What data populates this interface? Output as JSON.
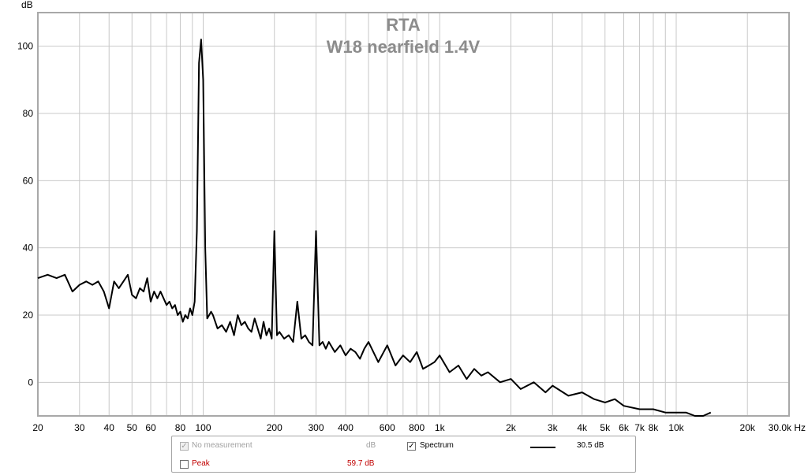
{
  "chart_data": {
    "type": "line",
    "title": "RTA",
    "subtitle": "W18 nearfield 1.4V",
    "ylabel": "dB",
    "xlabel": "Hz",
    "xscale": "log",
    "xlim": [
      20,
      30000
    ],
    "ylim": [
      -10,
      110
    ],
    "y_ticks": [
      0,
      20,
      40,
      60,
      80,
      100
    ],
    "x_ticks": [
      {
        "v": 20,
        "label": "20"
      },
      {
        "v": 30,
        "label": "30"
      },
      {
        "v": 40,
        "label": "40"
      },
      {
        "v": 50,
        "label": "50"
      },
      {
        "v": 60,
        "label": "60"
      },
      {
        "v": 80,
        "label": "80"
      },
      {
        "v": 100,
        "label": "100"
      },
      {
        "v": 200,
        "label": "200"
      },
      {
        "v": 300,
        "label": "300"
      },
      {
        "v": 400,
        "label": "400"
      },
      {
        "v": 600,
        "label": "600"
      },
      {
        "v": 800,
        "label": "800"
      },
      {
        "v": 1000,
        "label": "1k"
      },
      {
        "v": 2000,
        "label": "2k"
      },
      {
        "v": 3000,
        "label": "3k"
      },
      {
        "v": 4000,
        "label": "4k"
      },
      {
        "v": 5000,
        "label": "5k"
      },
      {
        "v": 6000,
        "label": "6k"
      },
      {
        "v": 7000,
        "label": "7k"
      },
      {
        "v": 8000,
        "label": "8k"
      },
      {
        "v": 10000,
        "label": "10k"
      },
      {
        "v": 20000,
        "label": "20k"
      },
      {
        "v": 30000,
        "label": "30.0k Hz"
      }
    ],
    "grid": true,
    "series": [
      {
        "name": "Spectrum",
        "color": "#000000",
        "x": [
          20,
          22,
          24,
          26,
          28,
          30,
          32,
          34,
          36,
          38,
          40,
          42,
          44,
          46,
          48,
          50,
          52,
          54,
          56,
          58,
          60,
          62,
          64,
          66,
          68,
          70,
          72,
          74,
          76,
          78,
          80,
          82,
          84,
          86,
          88,
          90,
          92,
          94,
          96,
          98,
          100,
          102,
          104,
          106,
          108,
          110,
          115,
          120,
          125,
          130,
          135,
          140,
          145,
          150,
          155,
          160,
          165,
          170,
          175,
          180,
          185,
          190,
          195,
          200,
          205,
          210,
          220,
          230,
          240,
          250,
          260,
          270,
          280,
          290,
          300,
          310,
          320,
          330,
          340,
          360,
          380,
          400,
          420,
          440,
          460,
          480,
          500,
          550,
          600,
          650,
          700,
          750,
          800,
          850,
          900,
          950,
          1000,
          1100,
          1200,
          1300,
          1400,
          1500,
          1600,
          1800,
          2000,
          2200,
          2500,
          2800,
          3000,
          3500,
          4000,
          4500,
          5000,
          5500,
          6000,
          7000,
          8000,
          9000,
          10000,
          11000,
          12000,
          13000,
          14000
        ],
        "values": [
          31,
          32,
          31,
          32,
          27,
          29,
          30,
          29,
          30,
          27,
          22,
          30,
          28,
          30,
          32,
          26,
          25,
          28,
          27,
          31,
          24,
          27,
          25,
          27,
          25,
          23,
          24,
          22,
          23,
          20,
          21,
          18,
          20,
          19,
          22,
          20,
          24,
          45,
          95,
          102,
          90,
          40,
          19,
          20,
          21,
          20,
          16,
          17,
          15,
          18,
          14,
          20,
          17,
          18,
          16,
          15,
          19,
          16,
          13,
          18,
          14,
          16,
          13,
          45,
          14,
          15,
          13,
          14,
          12,
          24,
          13,
          14,
          12,
          11,
          45,
          11,
          12,
          10,
          12,
          9,
          11,
          8,
          10,
          9,
          7,
          10,
          12,
          6,
          11,
          5,
          8,
          6,
          9,
          4,
          5,
          6,
          8,
          3,
          5,
          1,
          4,
          2,
          3,
          0,
          1,
          -2,
          0,
          -3,
          -1,
          -4,
          -3,
          -5,
          -6,
          -5,
          -7,
          -8,
          -8,
          -9,
          -9,
          -9,
          -10,
          -10,
          -9
        ]
      }
    ],
    "legend_placement": "bottom-center"
  },
  "legend": {
    "row1": {
      "label": "No measurement",
      "unit": "dB",
      "series_label": "Spectrum",
      "value": "30.5 dB"
    },
    "row2": {
      "label": "Peak",
      "value": "59.7 dB"
    },
    "label_color": "#a0a0a0",
    "peak_color": "#c00000"
  }
}
